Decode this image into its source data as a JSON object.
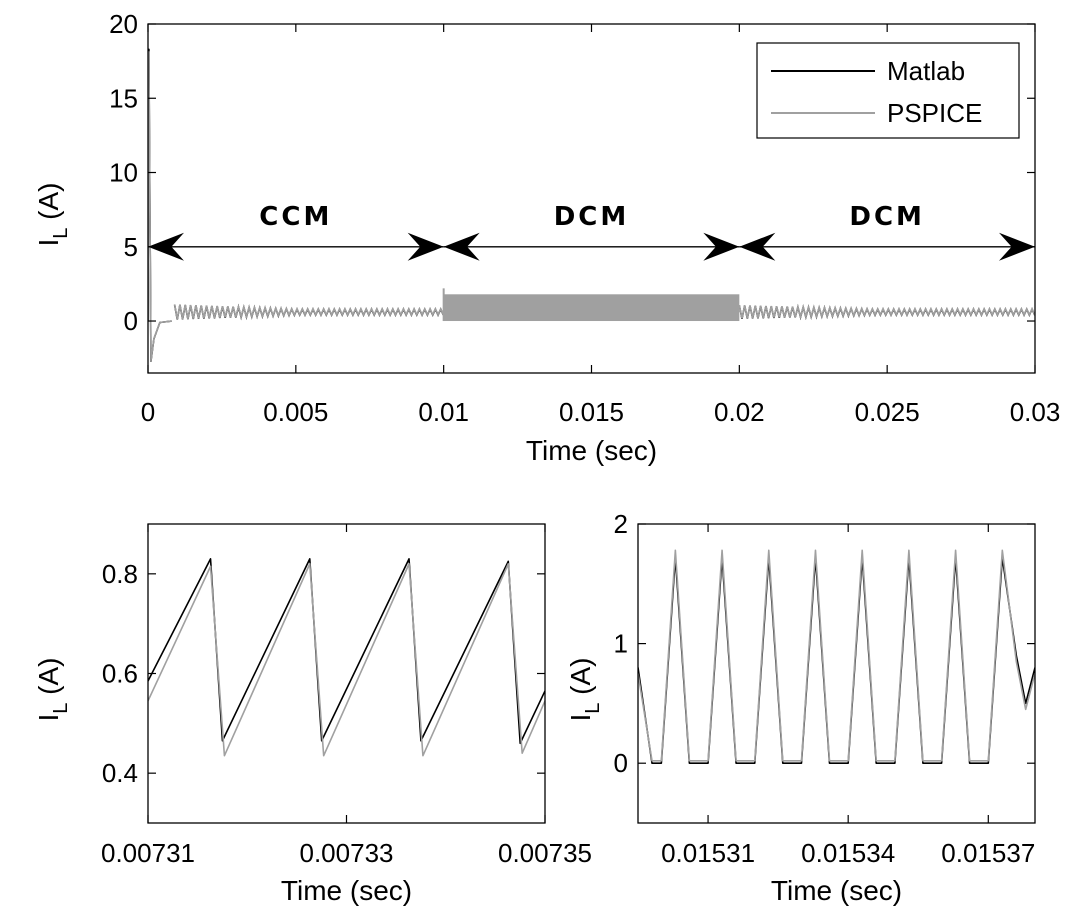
{
  "colors": {
    "matlab": "#000000",
    "pspice": "#a0a0a0",
    "axis": "#000000",
    "background": "#ffffff"
  },
  "legend": {
    "items": [
      {
        "label": "Matlab",
        "color": "#000000"
      },
      {
        "label": "PSPICE",
        "color": "#a0a0a0"
      }
    ],
    "position": "top-right"
  },
  "chart_data": [
    {
      "type": "line",
      "xlabel": "Time (sec)",
      "ylabel_main": "I",
      "ylabel_sub": "L",
      "ylabel_unit": "(A)",
      "xlim": [
        0,
        0.03
      ],
      "ylim": [
        -3.5,
        20
      ],
      "xticks": [
        0,
        0.005,
        0.01,
        0.015,
        0.02,
        0.025,
        0.03
      ],
      "xtick_labels": [
        "0",
        "0.005",
        "0.01",
        "0.015",
        "0.02",
        "0.025",
        "0.03"
      ],
      "yticks": [
        0,
        5,
        10,
        15,
        20
      ],
      "ytick_labels": [
        "0",
        "5",
        "10",
        "15",
        "20"
      ],
      "grid": false,
      "annotations": [
        {
          "text": "CCM",
          "x_start": 0,
          "x_end": 0.01,
          "y": 5
        },
        {
          "text": "DCM",
          "x_start": 0.01,
          "x_end": 0.02,
          "y": 5
        },
        {
          "text": "DCM",
          "x_start": 0.02,
          "x_end": 0.03,
          "y": 5
        }
      ],
      "segments": [
        {
          "region": "startup",
          "x": [
            0,
            3e-05,
            0.0001,
            0.0002,
            0.0004,
            0.0008
          ],
          "y": [
            0,
            18.3,
            -2.7,
            -1.2,
            -0.1,
            0
          ]
        },
        {
          "region": "CCM",
          "x_range": [
            0.0009,
            0.01
          ],
          "mean": 0.6,
          "ripple_amplitude_start": 0.5,
          "ripple_amplitude_end": 0.2
        },
        {
          "region": "DCM",
          "x_range": [
            0.01,
            0.02
          ],
          "min": 0,
          "max": 1.8,
          "spike_at_start": 2.2
        },
        {
          "region": "DCM",
          "x_range": [
            0.02,
            0.03
          ],
          "mean": 0.6,
          "ripple_amplitude_start": 0.45,
          "ripple_amplitude_end": 0.2
        }
      ],
      "series": [
        {
          "name": "Matlab"
        },
        {
          "name": "PSPICE"
        }
      ]
    },
    {
      "type": "line",
      "xlabel": "Time (sec)",
      "ylabel_main": "I",
      "ylabel_sub": "L",
      "ylabel_unit": "(A)",
      "xlim": [
        0.00731,
        0.00735
      ],
      "ylim": [
        0.3,
        0.9
      ],
      "xticks": [
        0.00731,
        0.00733,
        0.00735
      ],
      "xtick_labels": [
        "0.00731",
        "0.00733",
        "0.00735"
      ],
      "yticks": [
        0.4,
        0.6,
        0.8
      ],
      "ytick_labels": [
        "0.4",
        "0.6",
        "0.8"
      ],
      "grid": false,
      "series": [
        {
          "name": "Matlab",
          "x": [
            0.00731,
            0.0073163,
            0.0073175,
            0.0073263,
            0.0073275,
            0.0073363,
            0.0073375,
            0.0073463,
            0.0073475,
            0.00735
          ],
          "y": [
            0.585,
            0.83,
            0.465,
            0.83,
            0.465,
            0.83,
            0.465,
            0.825,
            0.46,
            0.565
          ]
        },
        {
          "name": "PSPICE",
          "x": [
            0.00731,
            0.0073163,
            0.0073177,
            0.0073263,
            0.0073277,
            0.0073363,
            0.0073377,
            0.0073463,
            0.0073477,
            0.00735
          ],
          "y": [
            0.545,
            0.815,
            0.435,
            0.82,
            0.435,
            0.82,
            0.435,
            0.82,
            0.44,
            0.545
          ]
        }
      ]
    },
    {
      "type": "line",
      "xlabel": "Time (sec)",
      "ylabel_main": "I",
      "ylabel_sub": "L",
      "ylabel_unit": "(A)",
      "xlim": [
        0.015295,
        0.01538
      ],
      "ylim": [
        -0.5,
        2
      ],
      "xticks": [
        0.01531,
        0.01534,
        0.01537
      ],
      "xtick_labels": [
        "0.01531",
        "0.01534",
        "0.01537"
      ],
      "yticks": [
        0,
        1,
        2
      ],
      "ytick_labels": [
        "0",
        "1",
        "2"
      ],
      "grid": false,
      "series": [
        {
          "name": "Matlab",
          "x": [
            0.015295,
            0.015298,
            0.0153,
            0.015303,
            0.015306,
            0.015308,
            0.01531,
            0.015313,
            0.015316,
            0.015318,
            0.01532,
            0.015323,
            0.015326,
            0.015328,
            0.01533,
            0.015333,
            0.015336,
            0.015338,
            0.01534,
            0.015343,
            0.015346,
            0.015348,
            0.01535,
            0.015353,
            0.015356,
            0.015358,
            0.01536,
            0.015363,
            0.015366,
            0.015368,
            0.01537,
            0.015373,
            0.015376,
            0.015378,
            0.01538
          ],
          "y": [
            0.8,
            0,
            0,
            1.72,
            0,
            0,
            0,
            1.72,
            0,
            0,
            0,
            1.72,
            0,
            0,
            0,
            1.72,
            0,
            0,
            0,
            1.72,
            0,
            0,
            0,
            1.72,
            0,
            0,
            0,
            1.72,
            0,
            0,
            0,
            1.72,
            0.9,
            0.5,
            0.8
          ]
        },
        {
          "name": "PSPICE",
          "x": [
            0.015295,
            0.015298,
            0.0153,
            0.015303,
            0.015306,
            0.015308,
            0.01531,
            0.015313,
            0.015316,
            0.015318,
            0.01532,
            0.015323,
            0.015326,
            0.015328,
            0.01533,
            0.015333,
            0.015336,
            0.015338,
            0.01534,
            0.015343,
            0.015346,
            0.015348,
            0.01535,
            0.015353,
            0.015356,
            0.015358,
            0.01536,
            0.015363,
            0.015366,
            0.015368,
            0.01537,
            0.015373,
            0.015376,
            0.015378,
            0.01538
          ],
          "y": [
            0.75,
            0.02,
            0.02,
            1.78,
            0.02,
            0.02,
            0.02,
            1.78,
            0.02,
            0.02,
            0.02,
            1.78,
            0.02,
            0.02,
            0.02,
            1.78,
            0.02,
            0.02,
            0.02,
            1.78,
            0.02,
            0.02,
            0.02,
            1.78,
            0.02,
            0.02,
            0.02,
            1.78,
            0.02,
            0.02,
            0.02,
            1.78,
            0.85,
            0.45,
            0.75
          ]
        }
      ]
    }
  ]
}
